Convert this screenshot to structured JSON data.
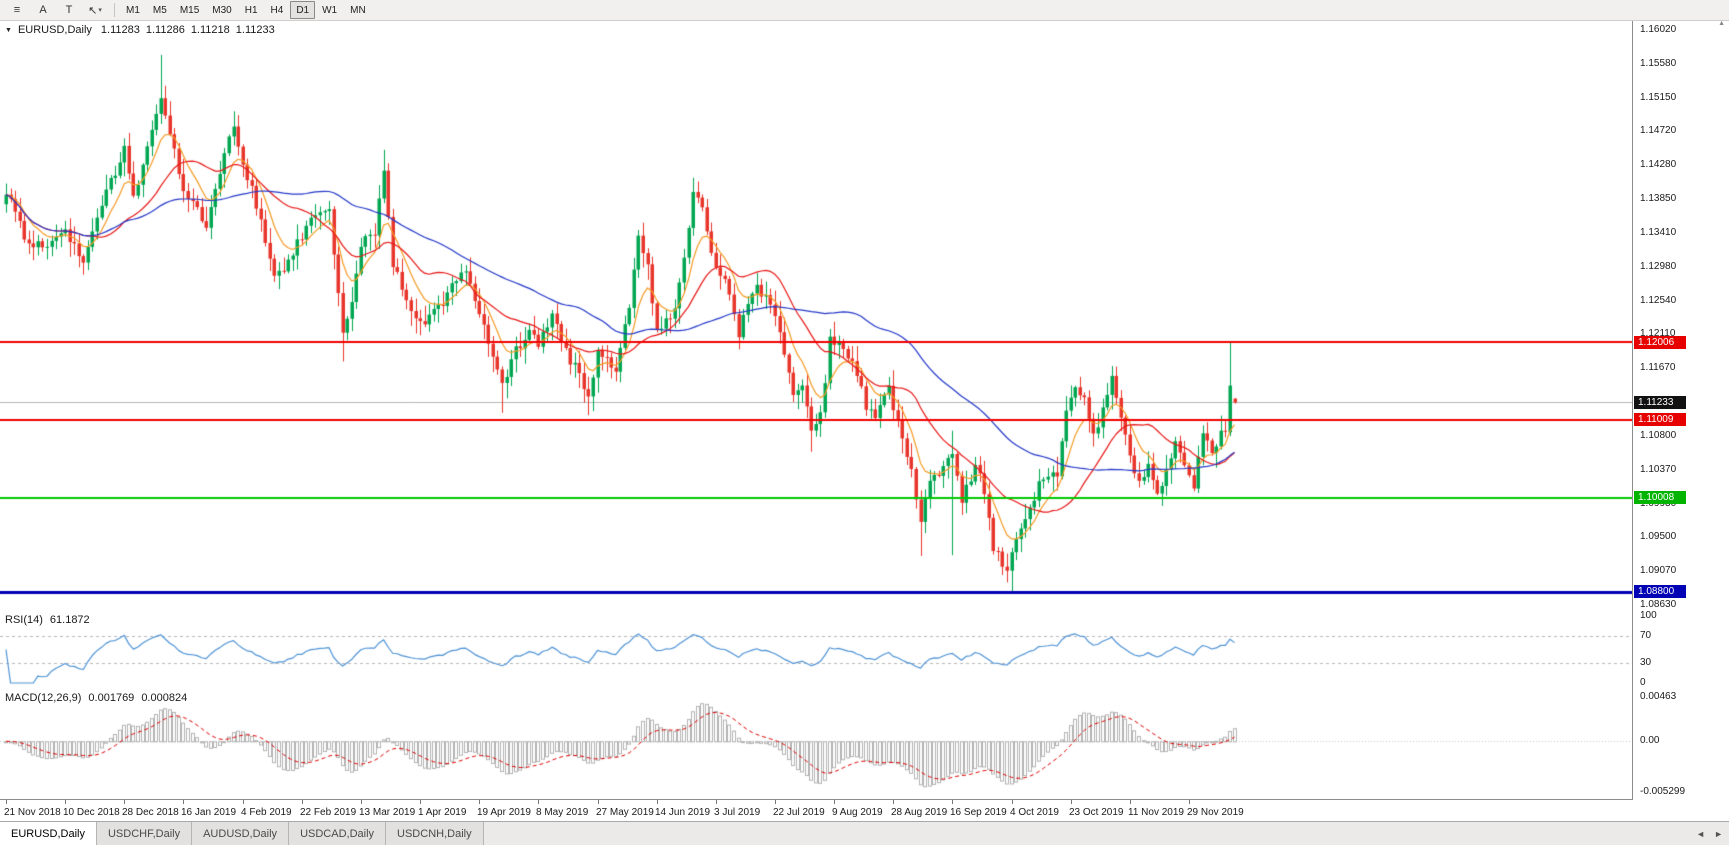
{
  "toolbar": {
    "icons": [
      {
        "name": "chart-list-icon",
        "glyph": "≡"
      },
      {
        "name": "text-label-icon",
        "glyph": "A"
      },
      {
        "name": "text-tool-icon",
        "glyph": "T"
      },
      {
        "name": "cursor-tool-icon",
        "glyph": "↖",
        "dropdown": "▾"
      }
    ],
    "timeframes": [
      "M1",
      "M5",
      "M15",
      "M30",
      "H1",
      "H4",
      "D1",
      "W1",
      "MN"
    ],
    "active_timeframe": "D1"
  },
  "chart_header": {
    "collapse_icon": "▼",
    "symbol": "EURUSD,Daily",
    "open": "1.11283",
    "high": "1.11286",
    "low": "1.11218",
    "close": "1.11233"
  },
  "price_axis": {
    "labels": [
      "1.16020",
      "1.15580",
      "1.15150",
      "1.14720",
      "1.14280",
      "1.13850",
      "1.13410",
      "1.12980",
      "1.12540",
      "1.12110",
      "1.11670",
      "1.11240",
      "1.10800",
      "1.10370",
      "1.09930",
      "1.09500",
      "1.09070",
      "1.08630"
    ],
    "scroll_up_icon": "▲"
  },
  "levels": [
    {
      "name": "resistance-line-1-12006",
      "value": "1.12006",
      "price": 1.12006,
      "color": "#f10000",
      "badge_bg": "#e60000",
      "line_width": 2,
      "current": false
    },
    {
      "name": "current-price-line",
      "value": "1.11233",
      "price": 1.11233,
      "color": "#b4b4b4",
      "badge_bg": "#111111",
      "line_width": 1,
      "current": true
    },
    {
      "name": "support-line-1-11009",
      "value": "1.11009",
      "price": 1.11009,
      "color": "#f10000",
      "badge_bg": "#e60000",
      "line_width": 2,
      "current": false
    },
    {
      "name": "support-line-1-10008",
      "value": "1.10008",
      "price": 1.10008,
      "color": "#00c800",
      "badge_bg": "#00b400",
      "line_width": 2,
      "current": false
    },
    {
      "name": "support-line-1-08800",
      "value": "1.08800",
      "price": 1.088,
      "color": "#0000b4",
      "badge_bg": "#0000b4",
      "line_width": 3,
      "current": false
    }
  ],
  "rsi_panel": {
    "name": "RSI(14)",
    "value": "61.1872",
    "ticks": [
      "100",
      "70",
      "30",
      "0"
    ],
    "tick_values": [
      100,
      70,
      30,
      0
    ],
    "dashed_levels": [
      70,
      30
    ],
    "line_color": "#4f93d5"
  },
  "macd_panel": {
    "name": "MACD(12,26,9)",
    "macd_value": "0.001769",
    "signal_value": "0.000824",
    "ticks": [
      "0.00463",
      "0.00",
      "-0.005299"
    ],
    "tick_values": [
      0.00463,
      0,
      -0.005299
    ],
    "histogram_color": "#b2b2b2",
    "signal_color": "#dd0000"
  },
  "time_axis": {
    "labels": [
      "21 Nov 2018",
      "10 Dec 2018",
      "28 Dec 2018",
      "16 Jan 2019",
      "4 Feb 2019",
      "22 Feb 2019",
      "13 Mar 2019",
      "1 Apr 2019",
      "19 Apr 2019",
      "8 May 2019",
      "27 May 2019",
      "14 Jun 2019",
      "3 Jul 2019",
      "22 Jul 2019",
      "9 Aug 2019",
      "28 Aug 2019",
      "16 Sep 2019",
      "4 Oct 2019",
      "23 Oct 2019",
      "11 Nov 2019",
      "29 Nov 2019"
    ],
    "candles_per_label": 13
  },
  "bottom_tabs": {
    "tabs": [
      {
        "label": "EURUSD,Daily",
        "active": true
      },
      {
        "label": "USDCHF,Daily",
        "active": false
      },
      {
        "label": "AUDUSD,Daily",
        "active": false
      },
      {
        "label": "USDCAD,Daily",
        "active": false
      },
      {
        "label": "USDCNH,Daily",
        "active": false
      }
    ],
    "scroll_left_icon": "◄",
    "scroll_right_icon": "►"
  },
  "chart_data": {
    "type": "candlestick",
    "symbol": "EURUSD",
    "timeframe": "Daily",
    "visible_price_range": [
      1.0863,
      1.1602
    ],
    "candle_count": 271,
    "bull_color": "#00a651",
    "bear_color": "#e8352b",
    "horizontal_lines": [
      1.12006,
      1.11009,
      1.10008,
      1.088
    ],
    "current_price": 1.11233,
    "close_anchors": [
      [
        0,
        1.139
      ],
      [
        4,
        1.134
      ],
      [
        8,
        1.132
      ],
      [
        13,
        1.135
      ],
      [
        17,
        1.13
      ],
      [
        21,
        1.138
      ],
      [
        26,
        1.145
      ],
      [
        28,
        1.139
      ],
      [
        31,
        1.145
      ],
      [
        34,
        1.152
      ],
      [
        36,
        1.147
      ],
      [
        39,
        1.14
      ],
      [
        44,
        1.135
      ],
      [
        48,
        1.144
      ],
      [
        50,
        1.148
      ],
      [
        52,
        1.143
      ],
      [
        56,
        1.136
      ],
      [
        59,
        1.128
      ],
      [
        62,
        1.13
      ],
      [
        65,
        1.134
      ],
      [
        68,
        1.136
      ],
      [
        71,
        1.137
      ],
      [
        74,
        1.121
      ],
      [
        76,
        1.125
      ],
      [
        78,
        1.133
      ],
      [
        81,
        1.134
      ],
      [
        83,
        1.142
      ],
      [
        85,
        1.13
      ],
      [
        88,
        1.125
      ],
      [
        91,
        1.122
      ],
      [
        94,
        1.124
      ],
      [
        98,
        1.127
      ],
      [
        101,
        1.129
      ],
      [
        104,
        1.124
      ],
      [
        107,
        1.119
      ],
      [
        109,
        1.115
      ],
      [
        112,
        1.119
      ],
      [
        115,
        1.121
      ],
      [
        117,
        1.12
      ],
      [
        120,
        1.123
      ],
      [
        124,
        1.118
      ],
      [
        128,
        1.113
      ],
      [
        130,
        1.119
      ],
      [
        134,
        1.117
      ],
      [
        137,
        1.125
      ],
      [
        139,
        1.133
      ],
      [
        141,
        1.13
      ],
      [
        143,
        1.121
      ],
      [
        146,
        1.123
      ],
      [
        148,
        1.127
      ],
      [
        151,
        1.139
      ],
      [
        153,
        1.137
      ],
      [
        156,
        1.129
      ],
      [
        158,
        1.128
      ],
      [
        161,
        1.121
      ],
      [
        163,
        1.125
      ],
      [
        165,
        1.127
      ],
      [
        168,
        1.125
      ],
      [
        170,
        1.121
      ],
      [
        173,
        1.114
      ],
      [
        175,
        1.115
      ],
      [
        177,
        1.108
      ],
      [
        179,
        1.111
      ],
      [
        181,
        1.12
      ],
      [
        184,
        1.12
      ],
      [
        186,
        1.117
      ],
      [
        189,
        1.112
      ],
      [
        191,
        1.11
      ],
      [
        194,
        1.114
      ],
      [
        197,
        1.108
      ],
      [
        199,
        1.104
      ],
      [
        201,
        1.097
      ],
      [
        203,
        1.103
      ],
      [
        206,
        1.104
      ],
      [
        208,
        1.106
      ],
      [
        210,
        1.1
      ],
      [
        213,
        1.104
      ],
      [
        215,
        1.101
      ],
      [
        217,
        1.094
      ],
      [
        219,
        1.092
      ],
      [
        220,
        1.09
      ],
      [
        221,
        1.093
      ],
      [
        223,
        1.096
      ],
      [
        225,
        1.099
      ],
      [
        228,
        1.103
      ],
      [
        231,
        1.103
      ],
      [
        233,
        1.112
      ],
      [
        235,
        1.115
      ],
      [
        237,
        1.113
      ],
      [
        239,
        1.108
      ],
      [
        241,
        1.111
      ],
      [
        243,
        1.115
      ],
      [
        245,
        1.11
      ],
      [
        247,
        1.106
      ],
      [
        249,
        1.102
      ],
      [
        251,
        1.104
      ],
      [
        253,
        1.101
      ],
      [
        255,
        1.103
      ],
      [
        257,
        1.107
      ],
      [
        259,
        1.105
      ],
      [
        261,
        1.102
      ],
      [
        263,
        1.108
      ],
      [
        265,
        1.106
      ],
      [
        267,
        1.1085
      ],
      [
        268,
        1.109
      ],
      [
        269,
        1.1145
      ],
      [
        270,
        1.11233
      ]
    ],
    "special_candles": [
      {
        "i": 34,
        "h": 1.157
      },
      {
        "i": 74,
        "l": 1.1176
      },
      {
        "i": 83,
        "h": 1.1448
      },
      {
        "i": 109,
        "l": 1.111
      },
      {
        "i": 128,
        "l": 1.1107
      },
      {
        "i": 151,
        "h": 1.1412
      },
      {
        "i": 177,
        "l": 1.106
      },
      {
        "i": 201,
        "l": 1.0926
      },
      {
        "i": 208,
        "l": 1.0927,
        "h": 1.1087
      },
      {
        "i": 221,
        "l": 1.0879
      },
      {
        "i": 269,
        "o": 1.1085,
        "c": 1.1145,
        "h": 1.12,
        "l": 1.108
      }
    ],
    "last_candle": {
      "open": 1.11283,
      "high": 1.11286,
      "low": 1.11218,
      "close": 1.11233
    },
    "moving_averages": [
      {
        "name": "fast-ma",
        "period": 8,
        "type": "ema",
        "color": "#f59a23"
      },
      {
        "name": "medium-ma",
        "period": 20,
        "type": "sma",
        "color": "#e81717"
      },
      {
        "name": "slow-ma",
        "period": 50,
        "type": "sma",
        "color": "#2438c8"
      }
    ]
  }
}
